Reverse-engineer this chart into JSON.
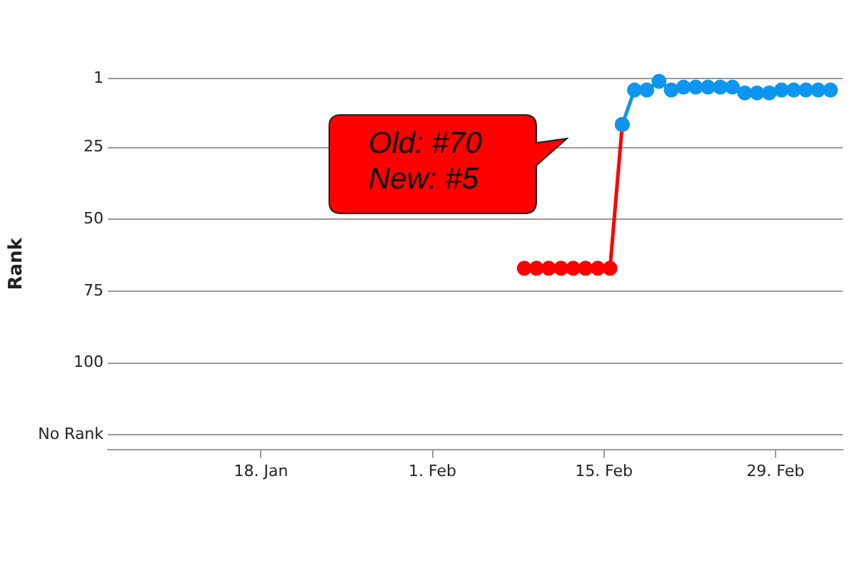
{
  "chart_data": {
    "type": "line",
    "ylabel": "Rank",
    "series": [
      {
        "color": "#ff0000",
        "x": [
          "--02-08T12:00",
          "--02-09T12:00",
          "--02-10T12:00",
          "--02-11T12:00",
          "--02-12T12:00",
          "--02-13T12:00",
          "--02-14T12:00",
          "--02-15T12:00",
          "--02-16T12:00"
        ],
        "values": [
          67,
          67,
          67,
          67,
          67,
          67,
          67,
          67,
          17
        ]
      },
      {
        "color": "#0d96ef",
        "x": [
          "--02-16T12:00",
          "--02-17T12:00",
          "--02-18T12:00",
          "--02-19T12:00",
          "--02-20T12:00",
          "--02-21T12:00",
          "--02-22T12:00",
          "--02-23T12:00",
          "--02-24T12:00",
          "--02-25T12:00",
          "--02-26T12:00",
          "--02-27T12:00",
          "--02-28T12:00",
          "--02-29T12:00",
          "--03-01T12:00",
          "--03-02T12:00",
          "--03-03T12:00",
          "--03-04T12:00"
        ],
        "values": [
          17,
          5,
          5,
          2,
          5,
          4,
          4,
          4,
          4,
          4,
          6,
          6,
          6,
          5,
          5,
          5,
          5,
          5
        ]
      }
    ],
    "xlim": [
      "--01-05T12:00",
      "--03-05T12:00"
    ],
    "xticks": [
      {
        "value": "--01-18",
        "label": "18. Jan"
      },
      {
        "value": "--02-01",
        "label": "1. Feb"
      },
      {
        "value": "--02-15",
        "label": "15. Feb"
      },
      {
        "value": "--02-29",
        "label": "29. Feb"
      }
    ],
    "ylim": [
      130,
      1
    ],
    "yticks": [
      1,
      25,
      50,
      75,
      100,
      {
        "value": 125,
        "label": "No Rank"
      }
    ],
    "grid": "y",
    "marker": "circle",
    "line_style": "solid",
    "annotations": [
      "Old: #70\nNew: #5"
    ]
  }
}
